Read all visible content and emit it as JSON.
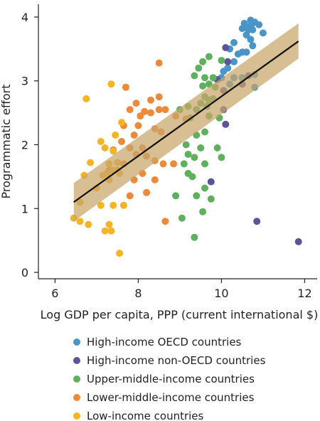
{
  "chart_data": {
    "type": "scatter",
    "title": "",
    "xlabel": "Log GDP per capita, PPP (current international $)",
    "ylabel": "Programmatic effort",
    "xlim": [
      5.6,
      12.3
    ],
    "ylim": [
      -0.1,
      4.2
    ],
    "x_ticks": [
      6,
      8,
      10,
      12
    ],
    "y_ticks": [
      0,
      1,
      2,
      3,
      4
    ],
    "grid": false,
    "legend_position": "bottom",
    "fit_line": {
      "x": [
        6.45,
        11.85
      ],
      "y": [
        1.1,
        3.62
      ],
      "ci_lower": [
        0.8,
        3.35
      ],
      "ci_upper": [
        1.4,
        3.9
      ]
    },
    "series": [
      {
        "name": "High-income OECD countries",
        "color": "#4a95c8",
        "points": [
          [
            10.5,
            3.82
          ],
          [
            10.55,
            3.9
          ],
          [
            10.6,
            3.85
          ],
          [
            10.65,
            3.8
          ],
          [
            10.7,
            3.95
          ],
          [
            10.72,
            3.88
          ],
          [
            10.75,
            3.8
          ],
          [
            10.8,
            3.92
          ],
          [
            10.9,
            3.88
          ],
          [
            11.0,
            3.75
          ],
          [
            10.6,
            3.72
          ],
          [
            10.7,
            3.65
          ],
          [
            10.75,
            3.55
          ],
          [
            10.6,
            3.45
          ],
          [
            10.5,
            3.45
          ],
          [
            10.4,
            3.42
          ],
          [
            10.3,
            3.6
          ],
          [
            10.2,
            3.5
          ],
          [
            10.3,
            3.3
          ],
          [
            10.15,
            3.2
          ],
          [
            10.05,
            3.15
          ],
          [
            10.0,
            3.05
          ],
          [
            10.3,
            3.05
          ],
          [
            10.5,
            3.05
          ],
          [
            10.8,
            3.1
          ],
          [
            10.2,
            2.95
          ],
          [
            10.8,
            2.9
          ]
        ]
      },
      {
        "name": "High-income non-OECD countries",
        "color": "#5c5499",
        "points": [
          [
            10.1,
            3.52
          ],
          [
            10.15,
            3.3
          ],
          [
            9.9,
            3.02
          ],
          [
            10.05,
            2.85
          ],
          [
            10.65,
            3.08
          ],
          [
            10.5,
            2.95
          ],
          [
            10.05,
            2.55
          ],
          [
            10.1,
            2.32
          ],
          [
            9.75,
            1.42
          ],
          [
            10.85,
            0.8
          ],
          [
            11.85,
            0.48
          ]
        ]
      },
      {
        "name": "Upper-middle-income countries",
        "color": "#5fb05e",
        "points": [
          [
            9.7,
            3.38
          ],
          [
            9.55,
            3.3
          ],
          [
            10.0,
            3.32
          ],
          [
            9.45,
            3.2
          ],
          [
            9.6,
            3.05
          ],
          [
            9.35,
            3.08
          ],
          [
            9.8,
            3.05
          ],
          [
            9.7,
            2.95
          ],
          [
            9.55,
            2.92
          ],
          [
            9.85,
            2.9
          ],
          [
            9.6,
            2.75
          ],
          [
            9.7,
            2.7
          ],
          [
            9.8,
            2.72
          ],
          [
            9.65,
            2.6
          ],
          [
            9.5,
            2.65
          ],
          [
            9.4,
            2.55
          ],
          [
            9.2,
            2.6
          ],
          [
            9.0,
            2.55
          ],
          [
            9.25,
            2.42
          ],
          [
            9.7,
            2.45
          ],
          [
            9.95,
            2.42
          ],
          [
            9.6,
            2.2
          ],
          [
            9.4,
            2.15
          ],
          [
            9.15,
            2.0
          ],
          [
            9.5,
            1.95
          ],
          [
            9.9,
            1.95
          ],
          [
            9.2,
            1.85
          ],
          [
            9.35,
            1.8
          ],
          [
            9.6,
            1.7
          ],
          [
            10.0,
            1.8
          ],
          [
            9.1,
            1.7
          ],
          [
            9.3,
            1.5
          ],
          [
            9.2,
            1.55
          ],
          [
            9.6,
            1.32
          ],
          [
            9.75,
            1.15
          ],
          [
            9.4,
            1.2
          ],
          [
            8.9,
            1.2
          ],
          [
            9.55,
            0.95
          ],
          [
            9.05,
            0.85
          ],
          [
            9.35,
            0.55
          ]
        ]
      },
      {
        "name": "Lower-middle-income countries",
        "color": "#ec8a3a",
        "points": [
          [
            8.5,
            3.28
          ],
          [
            7.7,
            2.9
          ],
          [
            8.3,
            2.7
          ],
          [
            8.5,
            2.75
          ],
          [
            7.95,
            2.65
          ],
          [
            7.8,
            2.55
          ],
          [
            8.15,
            2.52
          ],
          [
            8.3,
            2.5
          ],
          [
            8.5,
            2.55
          ],
          [
            8.65,
            2.55
          ],
          [
            8.05,
            2.45
          ],
          [
            8.9,
            2.45
          ],
          [
            9.15,
            2.4
          ],
          [
            7.65,
            2.3
          ],
          [
            8.0,
            2.3
          ],
          [
            8.4,
            2.25
          ],
          [
            8.55,
            2.2
          ],
          [
            7.9,
            2.15
          ],
          [
            7.6,
            2.05
          ],
          [
            8.1,
            1.95
          ],
          [
            7.8,
            1.95
          ],
          [
            7.4,
            1.92
          ],
          [
            7.95,
            1.85
          ],
          [
            8.2,
            1.82
          ],
          [
            8.4,
            1.75
          ],
          [
            8.6,
            1.7
          ],
          [
            8.85,
            1.7
          ],
          [
            7.65,
            1.7
          ],
          [
            7.5,
            1.6
          ],
          [
            7.3,
            1.6
          ],
          [
            8.1,
            1.55
          ],
          [
            8.4,
            1.45
          ],
          [
            7.9,
            1.45
          ],
          [
            8.2,
            1.25
          ],
          [
            7.8,
            1.2
          ],
          [
            8.65,
            0.8
          ]
        ]
      },
      {
        "name": "Low-income countries",
        "color": "#f5b423",
        "points": [
          [
            6.75,
            2.72
          ],
          [
            7.35,
            2.95
          ],
          [
            7.6,
            2.35
          ],
          [
            7.1,
            2.05
          ],
          [
            7.45,
            2.15
          ],
          [
            7.2,
            1.95
          ],
          [
            7.4,
            1.9
          ],
          [
            6.85,
            1.72
          ],
          [
            7.3,
            1.7
          ],
          [
            7.5,
            1.72
          ],
          [
            7.25,
            1.55
          ],
          [
            7.4,
            1.6
          ],
          [
            7.55,
            1.55
          ],
          [
            7.3,
            1.45
          ],
          [
            7.15,
            1.52
          ],
          [
            7.0,
            1.32
          ],
          [
            6.7,
            1.52
          ],
          [
            6.6,
            1.1
          ],
          [
            7.1,
            1.05
          ],
          [
            7.4,
            1.05
          ],
          [
            7.65,
            1.05
          ],
          [
            6.45,
            0.85
          ],
          [
            6.6,
            0.8
          ],
          [
            6.8,
            0.75
          ],
          [
            7.3,
            0.75
          ],
          [
            7.2,
            0.65
          ],
          [
            7.35,
            0.65
          ],
          [
            7.55,
            0.3
          ]
        ]
      }
    ]
  }
}
